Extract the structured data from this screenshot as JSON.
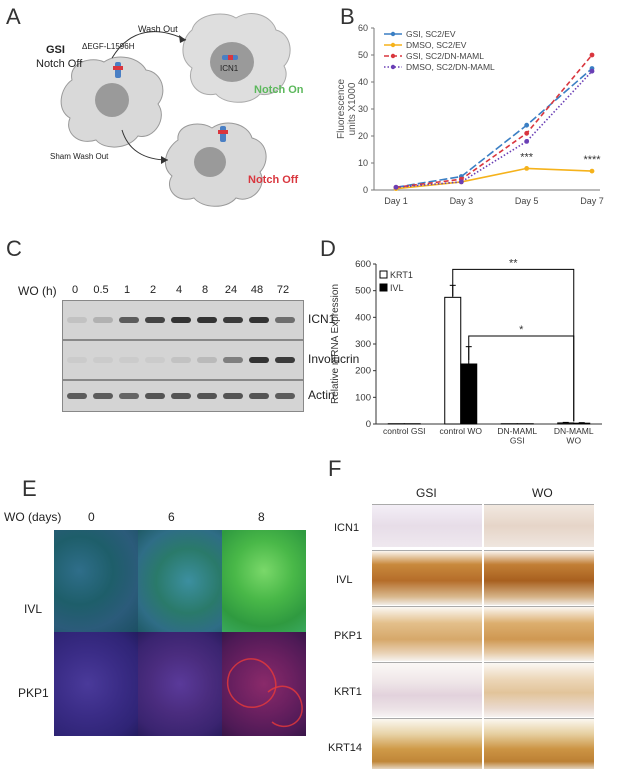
{
  "panels": [
    "A",
    "B",
    "C",
    "D",
    "E",
    "F"
  ],
  "panel_a": {
    "gsi_line1": "GSI",
    "gsi_line2": "Notch Off",
    "construct_label": "ΔEGF-L1596H",
    "wash_out": "Wash Out",
    "sham_wash_out": "Sham Wash Out",
    "icn1_label": "ICN1",
    "notch_on": "Notch On",
    "notch_off": "Notch Off",
    "colors": {
      "notch_on": "#5cb85c",
      "notch_off": "#d9363e"
    }
  },
  "chart_b": {
    "type": "line",
    "categories": [
      "Day 1",
      "Day 3",
      "Day 5",
      "Day 7"
    ],
    "ylabel": "Fluorescence units X1000",
    "ylim": [
      0,
      60
    ],
    "yticks": [
      "0",
      "10",
      "20",
      "30",
      "40",
      "50",
      "60"
    ],
    "legend_position": "top-left",
    "series": [
      {
        "name": "GSI, SC2/EV",
        "values": [
          1,
          5,
          24,
          45
        ],
        "color": "#3b7fc4",
        "dash": "long-dash"
      },
      {
        "name": "DMSO, SC2/EV",
        "values": [
          0.5,
          3,
          8,
          7
        ],
        "color": "#f5b21b",
        "dash": "solid"
      },
      {
        "name": "GSI, SC2/DN-MAML",
        "values": [
          1,
          4,
          21,
          50
        ],
        "color": "#d9363e",
        "dash": "dash"
      },
      {
        "name": "DMSO, SC2/DN-MAML",
        "values": [
          1,
          3,
          18,
          44
        ],
        "color": "#6a3fb5",
        "dash": "dot"
      }
    ],
    "annotations": [
      {
        "category": "Day 5",
        "text": "***"
      },
      {
        "category": "Day 7",
        "text": "****"
      }
    ]
  },
  "panel_c": {
    "row_title": "WO (h)",
    "timepoints": [
      "0",
      "0.5",
      "1",
      "2",
      "4",
      "8",
      "24",
      "48",
      "72"
    ],
    "blots": [
      {
        "label": "ICN1",
        "intensity": [
          0.1,
          0.2,
          0.7,
          0.85,
          0.95,
          0.95,
          0.9,
          0.95,
          0.6
        ]
      },
      {
        "label": "Involucrin",
        "intensity": [
          0.05,
          0.05,
          0.05,
          0.05,
          0.1,
          0.15,
          0.5,
          0.95,
          0.9
        ]
      },
      {
        "label": "Actin",
        "intensity": [
          0.7,
          0.7,
          0.65,
          0.75,
          0.75,
          0.75,
          0.75,
          0.75,
          0.7
        ]
      }
    ]
  },
  "chart_d": {
    "type": "bar",
    "categories": [
      "control GSI",
      "control WO",
      "DN-MAML GSI",
      "DN-MAML WO"
    ],
    "ylabel": "Relative mRNA Expression",
    "ylim": [
      0,
      600
    ],
    "yticks": [
      "0",
      "100",
      "200",
      "300",
      "400",
      "500",
      "600"
    ],
    "legend_position": "top-left",
    "series": [
      {
        "name": "KRT1",
        "values": [
          1,
          475,
          1,
          4
        ],
        "errors": [
          0,
          45,
          0,
          2
        ],
        "color": "#ffffff"
      },
      {
        "name": "IVL",
        "values": [
          1,
          225,
          1,
          3
        ],
        "errors": [
          0,
          65,
          0,
          2
        ],
        "color": "#000000"
      }
    ],
    "significance": [
      {
        "text": "**",
        "from": "control WO",
        "to": "DN-MAML WO"
      },
      {
        "text": "*",
        "from": "control WO",
        "to": "DN-MAML WO"
      }
    ]
  },
  "panel_e": {
    "row_title": "WO (days)",
    "columns": [
      "0",
      "6",
      "8"
    ],
    "rows": [
      "IVL",
      "PKP1"
    ]
  },
  "panel_f": {
    "columns": [
      "GSI",
      "WO"
    ],
    "rows": [
      "ICN1",
      "IVL",
      "PKP1",
      "KRT1",
      "KRT14"
    ]
  }
}
